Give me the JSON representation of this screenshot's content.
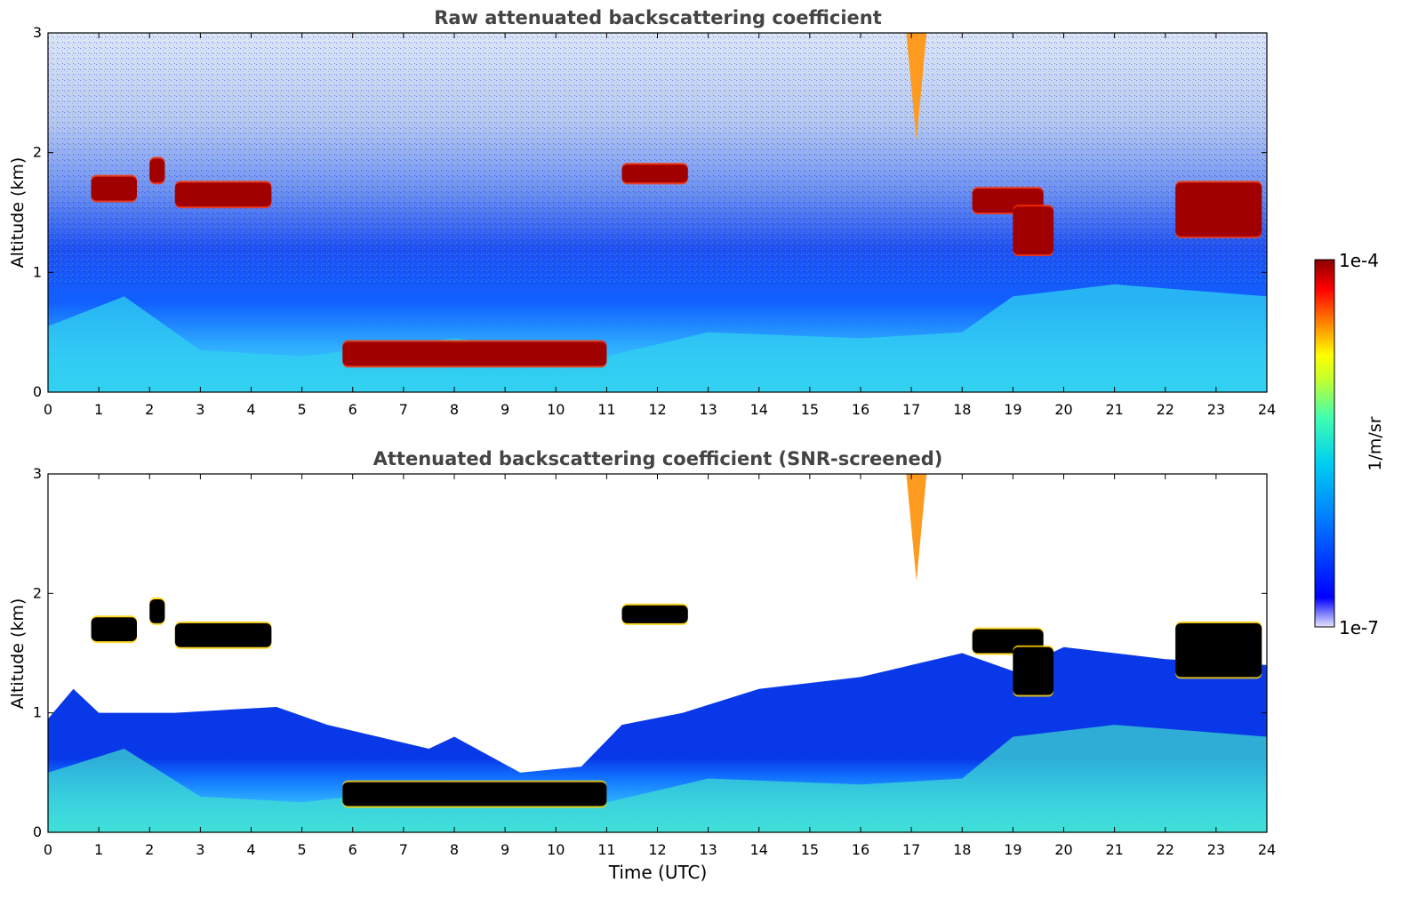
{
  "chart_data": [
    {
      "type": "heatmap",
      "title": "Raw attenuated backscattering coefficient",
      "ylabel": "Altitude (km)",
      "xlabel": "",
      "xlim": [
        0,
        24
      ],
      "ylim": [
        0,
        3
      ],
      "xticks": [
        "0",
        "1",
        "2",
        "3",
        "4",
        "5",
        "6",
        "7",
        "8",
        "9",
        "10",
        "11",
        "12",
        "13",
        "14",
        "15",
        "16",
        "17",
        "18",
        "19",
        "20",
        "21",
        "22",
        "23",
        "24"
      ],
      "yticks": [
        "0",
        "1",
        "2",
        "3"
      ],
      "features": [
        {
          "kind": "cloud",
          "t0": 0.85,
          "t1": 1.75,
          "z0": 1.6,
          "z1": 1.8
        },
        {
          "kind": "cloud",
          "t0": 2.0,
          "t1": 2.3,
          "z0": 1.75,
          "z1": 1.95
        },
        {
          "kind": "cloud",
          "t0": 2.5,
          "t1": 4.4,
          "z0": 1.55,
          "z1": 1.75
        },
        {
          "kind": "cloud",
          "t0": 11.3,
          "t1": 12.6,
          "z0": 1.75,
          "z1": 1.9
        },
        {
          "kind": "cloud",
          "t0": 18.2,
          "t1": 19.6,
          "z0": 1.5,
          "z1": 1.7
        },
        {
          "kind": "cloud",
          "t0": 19.0,
          "t1": 19.8,
          "z0": 1.15,
          "z1": 1.55
        },
        {
          "kind": "cloud",
          "t0": 22.2,
          "t1": 23.9,
          "z0": 1.3,
          "z1": 1.75
        },
        {
          "kind": "cloud",
          "t0": 5.8,
          "t1": 11.0,
          "z0": 0.22,
          "z1": 0.42
        },
        {
          "kind": "plume",
          "t0": 16.9,
          "t1": 17.3,
          "z0": 2.1,
          "z1": 3.0
        }
      ]
    },
    {
      "type": "heatmap",
      "title": "Attenuated backscattering coefficient (SNR-screened)",
      "ylabel": "Altitude (km)",
      "xlabel": "Time (UTC)",
      "xlim": [
        0,
        24
      ],
      "ylim": [
        0,
        3
      ],
      "xticks": [
        "0",
        "1",
        "2",
        "3",
        "4",
        "5",
        "6",
        "7",
        "8",
        "9",
        "10",
        "11",
        "12",
        "13",
        "14",
        "15",
        "16",
        "17",
        "18",
        "19",
        "20",
        "21",
        "22",
        "23",
        "24"
      ],
      "yticks": [
        "0",
        "1",
        "2",
        "3"
      ],
      "screened": true
    }
  ],
  "colorbar": {
    "label": "1/m/sr",
    "max_label": "1e-4",
    "min_label": "1e-7",
    "colormap": [
      "#e6e6fa",
      "#0000ff",
      "#00b0ff",
      "#00ffd0",
      "#80ff40",
      "#ffff00",
      "#ff8000",
      "#ff0000",
      "#8b0000"
    ]
  }
}
